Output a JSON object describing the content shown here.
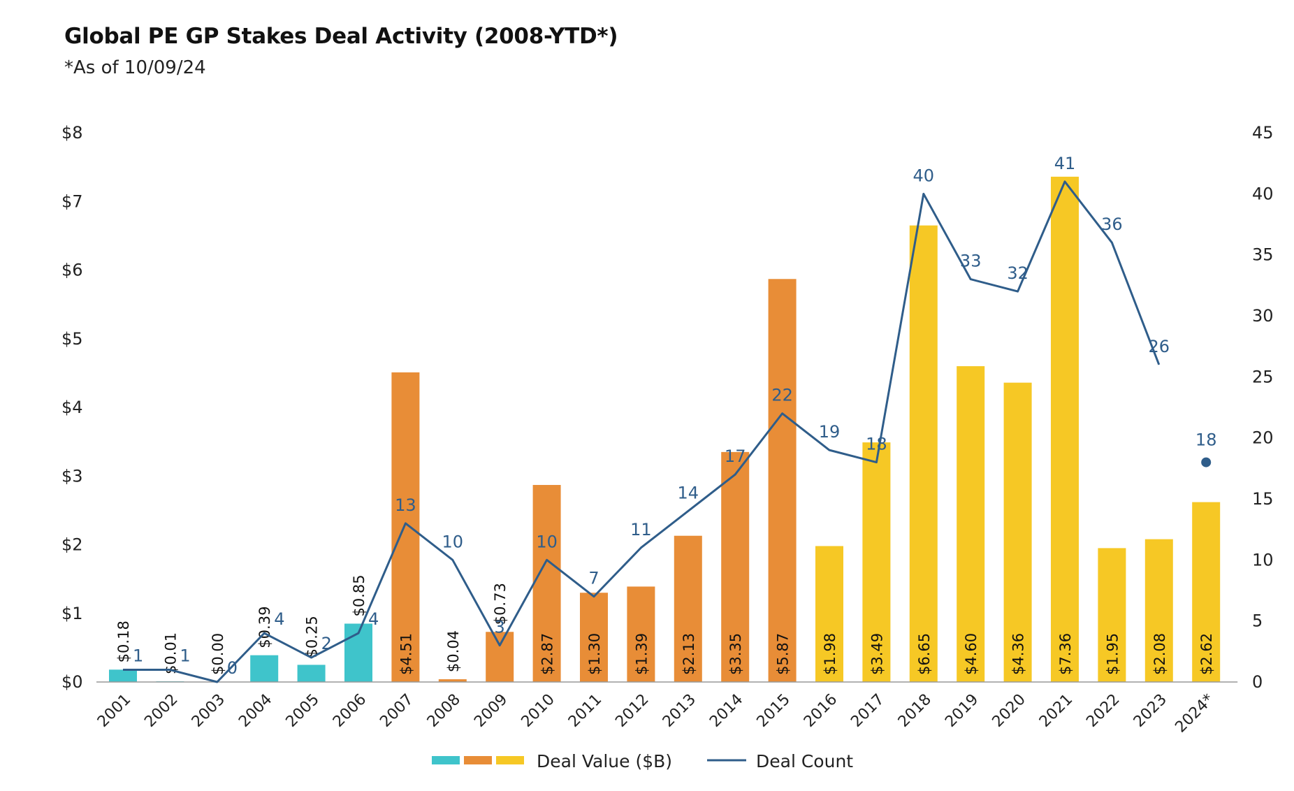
{
  "header": {
    "title": "Global PE GP Stakes Deal Activity (2008-YTD*)",
    "subtitle": "*As of 10/09/24"
  },
  "colors": {
    "teal": "#3fc4cb",
    "orange": "#e88d37",
    "yellow": "#f6c825",
    "line": "#2f5d8a",
    "axis": "#999999"
  },
  "chart_data": {
    "type": "bar",
    "title": "Global PE GP Stakes Deal Activity (2008-YTD*)",
    "subtitle": "*As of 10/09/24",
    "categories": [
      "2001",
      "2002",
      "2003",
      "2004",
      "2005",
      "2006",
      "2007",
      "2008",
      "2009",
      "2010",
      "2011",
      "2012",
      "2013",
      "2014",
      "2015",
      "2016",
      "2017",
      "2018",
      "2019",
      "2020",
      "2021",
      "2022",
      "2023",
      "2024*"
    ],
    "series": [
      {
        "name": "Deal Value ($B)",
        "axis": "left",
        "values": [
          0.18,
          0.01,
          0.0,
          0.39,
          0.25,
          0.85,
          4.51,
          0.04,
          0.73,
          2.87,
          1.3,
          1.39,
          2.13,
          3.35,
          5.87,
          1.98,
          3.49,
          6.65,
          4.6,
          4.36,
          7.36,
          1.95,
          2.08,
          2.62
        ],
        "labels": [
          "$0.18",
          "$0.01",
          "$0.00",
          "$0.39",
          "$0.25",
          "$0.85",
          "$4.51",
          "$0.04",
          "$0.73",
          "$2.87",
          "$1.30",
          "$1.39",
          "$2.13",
          "$3.35",
          "$5.87",
          "$1.98",
          "$3.49",
          "$6.65",
          "$4.60",
          "$4.36",
          "$7.36",
          "$1.95",
          "$2.08",
          "$2.62"
        ],
        "color_groups": [
          "teal",
          "teal",
          "teal",
          "teal",
          "teal",
          "teal",
          "orange",
          "orange",
          "orange",
          "orange",
          "orange",
          "orange",
          "orange",
          "orange",
          "orange",
          "yellow",
          "yellow",
          "yellow",
          "yellow",
          "yellow",
          "yellow",
          "yellow",
          "yellow",
          "yellow"
        ]
      },
      {
        "name": "Deal Count",
        "axis": "right",
        "type": "line",
        "values": [
          1,
          1,
          0,
          4,
          2,
          4,
          13,
          10,
          3,
          10,
          7,
          11,
          14,
          17,
          22,
          19,
          18,
          40,
          33,
          32,
          41,
          36,
          26,
          18
        ],
        "connected_through": "2023",
        "standalone_point": "2024*"
      }
    ],
    "y_left": {
      "range": [
        0,
        8
      ],
      "ticks": [
        "$0",
        "$1",
        "$2",
        "$3",
        "$4",
        "$5",
        "$6",
        "$7",
        "$8"
      ]
    },
    "y_right": {
      "range": [
        0,
        45
      ],
      "ticks": [
        "0",
        "5",
        "10",
        "15",
        "20",
        "25",
        "30",
        "35",
        "40",
        "45"
      ]
    },
    "grid": false,
    "legend": {
      "position": "bottom-center",
      "items": [
        {
          "label": "Deal Value ($B)",
          "swatches": [
            "teal",
            "orange",
            "yellow"
          ]
        },
        {
          "label": "Deal Count",
          "kind": "line"
        }
      ]
    }
  }
}
